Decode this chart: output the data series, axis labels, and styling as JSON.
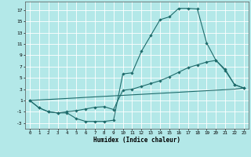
{
  "xlabel": "Humidex (Indice chaleur)",
  "bg_color": "#b3e8e8",
  "grid_color": "#ffffff",
  "line_color": "#1e6b6b",
  "line1_x": [
    0,
    1,
    2,
    3,
    4,
    5,
    6,
    7,
    8,
    9,
    10,
    11,
    12,
    13,
    14,
    15,
    16,
    17,
    18,
    19,
    20,
    21,
    22,
    23
  ],
  "line1_y": [
    1,
    -0.3,
    -1.0,
    -1.2,
    -1.2,
    -2.2,
    -2.7,
    -2.7,
    -2.7,
    -2.5,
    5.7,
    5.9,
    9.7,
    12.5,
    15.3,
    15.8,
    17.3,
    17.3,
    17.2,
    11.2,
    8.1,
    6.3,
    3.8,
    3.2
  ],
  "line2_x": [
    0,
    1,
    2,
    3,
    4,
    5,
    6,
    7,
    8,
    9,
    10,
    11,
    12,
    13,
    14,
    15,
    16,
    17,
    18,
    19,
    20,
    21,
    22,
    23
  ],
  "line2_y": [
    1,
    -0.3,
    -1.0,
    -1.2,
    -1.0,
    -0.8,
    -0.5,
    -0.2,
    -0.1,
    -0.6,
    2.8,
    3.0,
    3.5,
    4.0,
    4.5,
    5.2,
    6.0,
    6.8,
    7.3,
    7.8,
    8.1,
    6.5,
    3.8,
    3.2
  ],
  "line3_x": [
    0,
    1,
    2,
    3,
    4,
    5,
    6,
    7,
    8,
    9,
    10,
    11,
    12,
    13,
    14,
    15,
    16,
    17,
    18,
    19,
    20,
    21,
    22,
    23
  ],
  "line3_y": [
    1,
    1.09,
    1.18,
    1.27,
    1.36,
    1.45,
    1.55,
    1.64,
    1.73,
    1.82,
    1.91,
    2.0,
    2.09,
    2.18,
    2.27,
    2.36,
    2.45,
    2.55,
    2.64,
    2.73,
    2.82,
    2.91,
    3.0,
    3.2
  ],
  "xlim": [
    -0.5,
    23.5
  ],
  "ylim": [
    -4.0,
    18.5
  ],
  "yticks": [
    -3,
    -1,
    1,
    3,
    5,
    7,
    9,
    11,
    13,
    15,
    17
  ],
  "xticks": [
    0,
    1,
    2,
    3,
    4,
    5,
    6,
    7,
    8,
    9,
    10,
    11,
    12,
    13,
    14,
    15,
    16,
    17,
    18,
    19,
    20,
    21,
    22,
    23
  ]
}
